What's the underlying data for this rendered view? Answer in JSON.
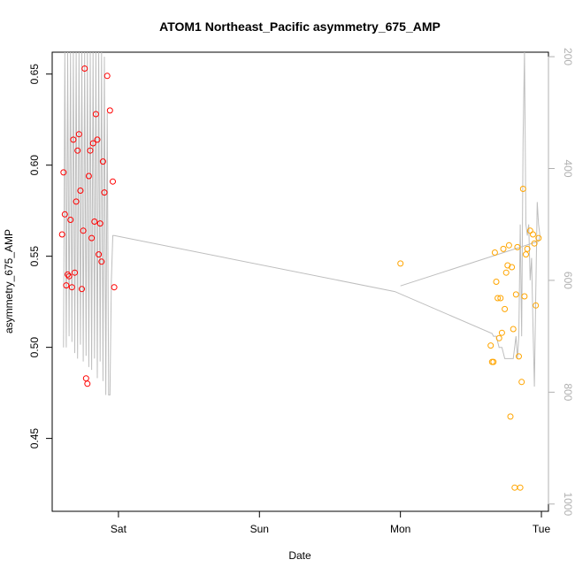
{
  "chart_data": {
    "type": "scatter",
    "title": "ATOM1 Northeast_Pacific asymmetry_675_AMP",
    "xlabel": "Date",
    "ylabel": "asymmetry_675_AMP",
    "x_ticks": [
      {
        "label": "Sat",
        "day": 1.0
      },
      {
        "label": "Sun",
        "day": 2.0
      },
      {
        "label": "Mon",
        "day": 3.0
      },
      {
        "label": "Tue",
        "day": 4.0
      }
    ],
    "xlim": [
      0.53,
      4.05
    ],
    "ylim": [
      0.41,
      0.662
    ],
    "y_ticks": [
      0.45,
      0.5,
      0.55,
      0.6,
      0.65
    ],
    "y_tick_labels": [
      "0.45",
      "0.50",
      "0.55",
      "0.60",
      "0.65"
    ],
    "right_axis": {
      "ticks": [
        200,
        400,
        600,
        800,
        1000
      ],
      "tick_labels": [
        "200",
        "400",
        "600",
        "800",
        "1000"
      ],
      "lim": [
        1013,
        192
      ],
      "color": "#b0b0b0"
    },
    "colors": {
      "series_1": "#ff0000",
      "series_2": "#ffa500",
      "depth_line": "#bebebe"
    },
    "grid": false,
    "series": [
      {
        "color": "#ff0000",
        "points": [
          [
            0.6,
            0.562
          ],
          [
            0.61,
            0.596
          ],
          [
            0.62,
            0.573
          ],
          [
            0.63,
            0.534
          ],
          [
            0.64,
            0.54
          ],
          [
            0.65,
            0.539
          ],
          [
            0.66,
            0.57
          ],
          [
            0.67,
            0.533
          ],
          [
            0.68,
            0.614
          ],
          [
            0.69,
            0.541
          ],
          [
            0.7,
            0.58
          ],
          [
            0.71,
            0.608
          ],
          [
            0.72,
            0.617
          ],
          [
            0.73,
            0.586
          ],
          [
            0.74,
            0.532
          ],
          [
            0.75,
            0.564
          ],
          [
            0.76,
            0.653
          ],
          [
            0.77,
            0.483
          ],
          [
            0.78,
            0.48
          ],
          [
            0.79,
            0.594
          ],
          [
            0.8,
            0.608
          ],
          [
            0.81,
            0.56
          ],
          [
            0.82,
            0.612
          ],
          [
            0.83,
            0.569
          ],
          [
            0.84,
            0.628
          ],
          [
            0.85,
            0.614
          ],
          [
            0.86,
            0.551
          ],
          [
            0.87,
            0.568
          ],
          [
            0.88,
            0.547
          ],
          [
            0.89,
            0.602
          ],
          [
            0.9,
            0.585
          ],
          [
            0.92,
            0.649
          ],
          [
            0.94,
            0.63
          ],
          [
            0.96,
            0.591
          ],
          [
            0.97,
            0.533
          ]
        ]
      },
      {
        "color": "#ffa500",
        "points": [
          [
            3.0,
            0.546
          ],
          [
            3.64,
            0.501
          ],
          [
            3.65,
            0.492
          ],
          [
            3.66,
            0.492
          ],
          [
            3.67,
            0.552
          ],
          [
            3.68,
            0.536
          ],
          [
            3.69,
            0.527
          ],
          [
            3.7,
            0.505
          ],
          [
            3.71,
            0.527
          ],
          [
            3.72,
            0.508
          ],
          [
            3.73,
            0.554
          ],
          [
            3.74,
            0.521
          ],
          [
            3.75,
            0.541
          ],
          [
            3.76,
            0.545
          ],
          [
            3.77,
            0.556
          ],
          [
            3.78,
            0.462
          ],
          [
            3.79,
            0.544
          ],
          [
            3.8,
            0.51
          ],
          [
            3.81,
            0.423
          ],
          [
            3.82,
            0.529
          ],
          [
            3.83,
            0.555
          ],
          [
            3.84,
            0.495
          ],
          [
            3.85,
            0.423
          ],
          [
            3.86,
            0.481
          ],
          [
            3.87,
            0.587
          ],
          [
            3.88,
            0.528
          ],
          [
            3.89,
            0.551
          ],
          [
            3.9,
            0.554
          ],
          [
            3.92,
            0.564
          ],
          [
            3.94,
            0.562
          ],
          [
            3.95,
            0.557
          ],
          [
            3.96,
            0.523
          ],
          [
            3.98,
            0.56
          ]
        ]
      }
    ],
    "depth_line": [
      [
        0.61,
        720
      ],
      [
        0.62,
        192
      ],
      [
        0.63,
        720
      ],
      [
        0.64,
        192
      ],
      [
        0.65,
        700
      ],
      [
        0.66,
        192
      ],
      [
        0.67,
        710
      ],
      [
        0.68,
        192
      ],
      [
        0.69,
        730
      ],
      [
        0.7,
        192
      ],
      [
        0.71,
        740
      ],
      [
        0.72,
        192
      ],
      [
        0.73,
        715
      ],
      [
        0.74,
        192
      ],
      [
        0.75,
        745
      ],
      [
        0.76,
        192
      ],
      [
        0.77,
        735
      ],
      [
        0.78,
        192
      ],
      [
        0.79,
        755
      ],
      [
        0.8,
        192
      ],
      [
        0.81,
        760
      ],
      [
        0.82,
        192
      ],
      [
        0.83,
        740
      ],
      [
        0.84,
        192
      ],
      [
        0.85,
        775
      ],
      [
        0.86,
        192
      ],
      [
        0.87,
        745
      ],
      [
        0.88,
        192
      ],
      [
        0.89,
        780
      ],
      [
        0.9,
        200
      ],
      [
        0.91,
        805
      ],
      [
        0.92,
        300
      ],
      [
        0.93,
        805
      ],
      [
        0.94,
        805
      ],
      [
        0.95,
        600
      ],
      [
        0.96,
        520
      ],
      [
        0.97,
        520
      ],
      [
        2.96,
        620
      ],
      [
        3.65,
        695
      ],
      [
        3.66,
        700
      ],
      [
        3.68,
        700
      ],
      [
        3.7,
        720
      ],
      [
        3.72,
        720
      ],
      [
        3.74,
        740
      ],
      [
        3.75,
        740
      ],
      [
        3.8,
        740
      ],
      [
        3.82,
        700
      ],
      [
        3.83,
        740
      ],
      [
        3.84,
        700
      ],
      [
        3.85,
        500
      ],
      [
        3.86,
        700
      ],
      [
        3.87,
        350
      ],
      [
        3.88,
        192
      ],
      [
        3.89,
        500
      ],
      [
        3.9,
        520
      ],
      [
        3.91,
        500
      ],
      [
        3.92,
        600
      ],
      [
        3.93,
        560
      ],
      [
        3.94,
        680
      ],
      [
        3.95,
        790
      ],
      [
        3.96,
        620
      ],
      [
        3.97,
        460
      ],
      [
        3.98,
        500
      ],
      [
        3.99,
        520
      ],
      [
        3.98,
        530
      ],
      [
        3.0,
        610
      ]
    ]
  }
}
